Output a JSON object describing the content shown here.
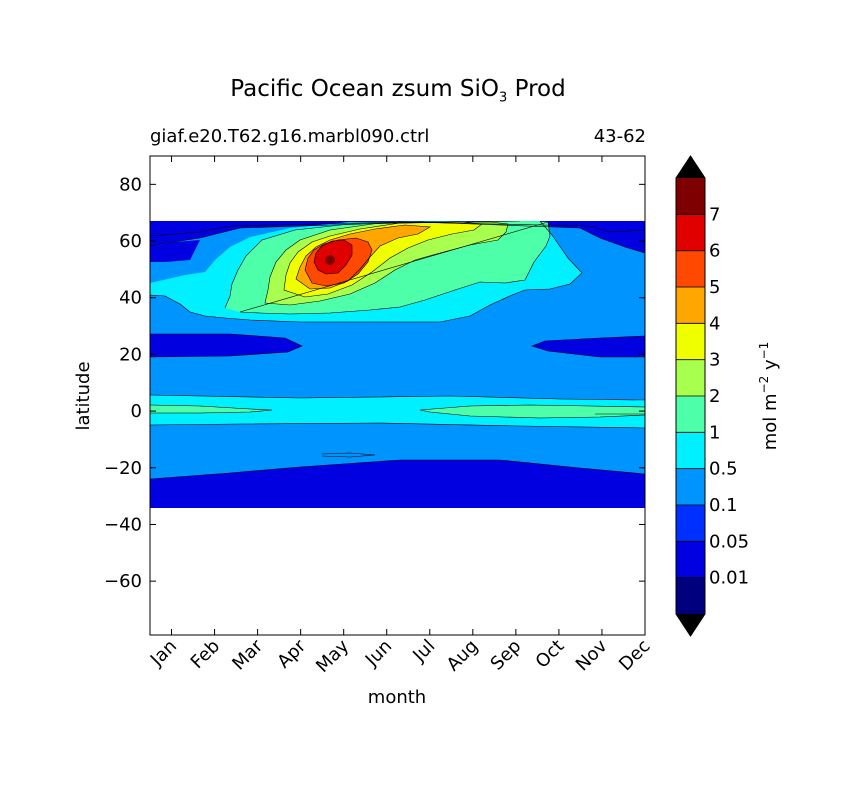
{
  "title": {
    "main": "Pacific Ocean zsum SiO",
    "subscript": "3",
    "suffix": " Prod"
  },
  "subtitle_left": "giaf.e20.T62.g16.marbl090.ctrl",
  "subtitle_right": "43-62",
  "chart_data": {
    "type": "heatmap",
    "plot_kind": "filled-contour",
    "xlabel": "month",
    "ylabel": "latitude",
    "x_ticks": [
      "Jan",
      "Feb",
      "Mar",
      "Apr",
      "May",
      "Jun",
      "Jul",
      "Aug",
      "Sep",
      "Oct",
      "Nov",
      "Dec"
    ],
    "x_range": [
      0.5,
      12.0
    ],
    "y_ticks": [
      80,
      60,
      40,
      20,
      0,
      -20,
      -40,
      -60
    ],
    "y_tick_labels": [
      "80",
      "60",
      "40",
      "20",
      "0",
      "−20",
      "−40",
      "−60"
    ],
    "y_range": [
      -79,
      90
    ],
    "data_lat_range": [
      -34,
      67
    ],
    "colorbar": {
      "label_main": "mol m",
      "label_exp1": "−2",
      "label_mid": " y",
      "label_exp2": "−1",
      "levels": [
        0.01,
        0.05,
        0.1,
        0.5,
        1,
        2,
        3,
        4,
        5,
        6,
        7
      ],
      "level_labels": [
        "0.01",
        "0.05",
        "0.1",
        "0.5",
        "1",
        "2",
        "3",
        "4",
        "5",
        "6",
        "7"
      ],
      "extend": "both",
      "colors": [
        "#00007f",
        "#0000e0",
        "#0030ff",
        "#0094ff",
        "#00f0ff",
        "#4dffa9",
        "#a9ff4d",
        "#f0ff00",
        "#ffa600",
        "#ff4800",
        "#e00000",
        "#7f0000"
      ],
      "under_color": "#000000",
      "over_color": "#000000"
    },
    "regions": [
      {
        "name": "base",
        "level": "0.1-0.5"
      },
      {
        "name": "north-cap-dark",
        "level": "0.01-0.05"
      },
      {
        "name": "north-cap",
        "level": "0.05-0.1"
      },
      {
        "name": "band-20-27N",
        "level": "0.05-0.1"
      },
      {
        "name": "band-southern",
        "level": "0.05-0.1"
      },
      {
        "name": "equatorial",
        "level": "0.5-1"
      },
      {
        "name": "equatorial-inner",
        "level": "1-2"
      },
      {
        "name": "subpolar-0.5",
        "level": "0.5-1"
      },
      {
        "name": "subpolar-1",
        "level": "1-2"
      },
      {
        "name": "subpolar-2",
        "level": "2-3"
      },
      {
        "name": "subpolar-3",
        "level": "3-4"
      },
      {
        "name": "subpolar-4",
        "level": "4-5"
      },
      {
        "name": "subpolar-5",
        "level": "5-6"
      },
      {
        "name": "subpolar-6",
        "level": "6-7"
      },
      {
        "name": "peak",
        "level": ">7",
        "month": 5,
        "lat": 53
      }
    ]
  }
}
